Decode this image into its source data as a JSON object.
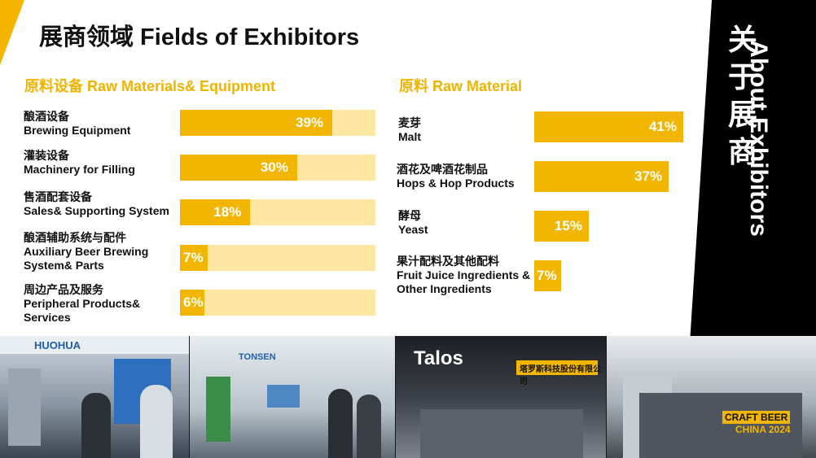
{
  "header": {
    "title": "展商领域 Fields of Exhibitors"
  },
  "side": {
    "title_zh": [
      "关",
      "于",
      "展",
      "商"
    ],
    "title_en": "About Exhibitors"
  },
  "left": {
    "title": "原料设备 Raw Materials& Equipment",
    "items": [
      {
        "zh": "酿酒设备",
        "en": "Brewing Equipment",
        "percent": 39,
        "label": "39%"
      },
      {
        "zh": "灌装设备",
        "en": "Machinery for Filling",
        "percent": 30,
        "label": "30%"
      },
      {
        "zh": "售酒配套设备",
        "en": "Sales& Supporting System",
        "percent": 18,
        "label": "18%"
      },
      {
        "zh": "酿酒辅助系统与配件",
        "en": "Auxiliary Beer Brewing System& Parts",
        "percent": 7,
        "label": "7%"
      },
      {
        "zh": "周边产品及服务",
        "en": "Peripheral Products& Services",
        "percent": 6,
        "label": "6%"
      }
    ]
  },
  "right": {
    "title": "原料 Raw Material",
    "items": [
      {
        "zh": "麦芽",
        "en": "Malt",
        "percent": 41,
        "label": "41%"
      },
      {
        "zh": "酒花及啤酒花制品",
        "en": "Hops & Hop Products",
        "percent": 37,
        "label": "37%"
      },
      {
        "zh": "酵母",
        "en": "Yeast",
        "percent": 15,
        "label": "15%"
      },
      {
        "zh": "果汁配料及其他配料",
        "en": "Fruit Juice Ingredients & Other Ingredients",
        "percent": 7,
        "label": "7%"
      }
    ]
  },
  "photos": {
    "sign1": "HUOHUA",
    "sign2": "TONSEN",
    "sign3": "Talos",
    "sign4": "塔罗斯科技股份有限公司",
    "logo_line1": "CRAFT BEER",
    "logo_line2": "CHINA 2024"
  },
  "colors": {
    "accent": "#f2b600",
    "track": "#ffe7a3",
    "title_accent": "#f0b400",
    "panel": "#000000"
  }
}
